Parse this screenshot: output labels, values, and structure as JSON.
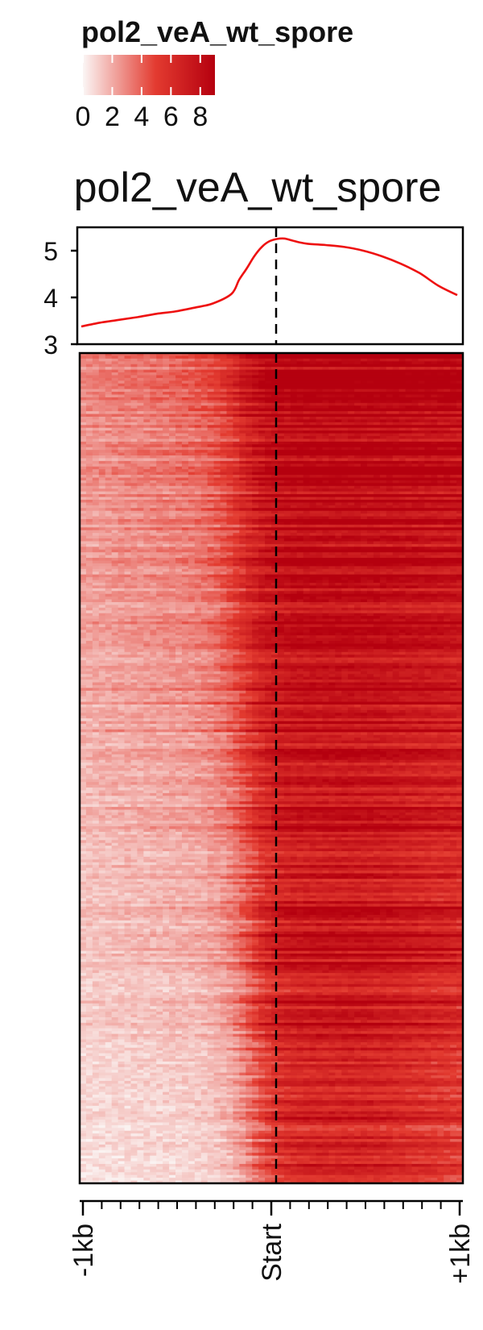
{
  "legend": {
    "title": "pol2_veA_wt_spore",
    "ticks": [
      "0",
      "2",
      "4",
      "6",
      "8"
    ],
    "min": 0,
    "max": 9,
    "color_low": "#fbf6f5",
    "color_mid": "#e33b30",
    "color_high": "#b5000f"
  },
  "chart_data": {
    "type": "heatmap",
    "title": "pol2_veA_wt_spore",
    "profile": {
      "type": "line",
      "series_color": "#ee1010",
      "ylim": [
        3,
        5.5
      ],
      "yticks": [
        "3",
        "4",
        "5"
      ],
      "x": [
        0,
        0.05,
        0.1,
        0.15,
        0.2,
        0.25,
        0.3,
        0.35,
        0.4,
        0.42,
        0.44,
        0.46,
        0.48,
        0.5,
        0.52,
        0.54,
        0.56,
        0.58,
        0.6,
        0.65,
        0.7,
        0.75,
        0.8,
        0.85,
        0.9,
        0.95,
        1.0
      ],
      "values": [
        3.38,
        3.46,
        3.52,
        3.58,
        3.65,
        3.7,
        3.78,
        3.87,
        4.08,
        4.38,
        4.62,
        4.88,
        5.08,
        5.2,
        5.25,
        5.26,
        5.22,
        5.18,
        5.15,
        5.12,
        5.08,
        5.0,
        4.88,
        4.72,
        4.52,
        4.25,
        4.05
      ]
    },
    "x_axis": {
      "tick_labels": [
        "-1kb",
        "Start",
        "+1kb"
      ],
      "tick_positions": [
        0,
        0.5,
        1
      ]
    },
    "heatmap": {
      "rows": 300,
      "columns": 60,
      "value_range": [
        0,
        9
      ],
      "pattern": "rows sorted by signal; high signal downstream of Start, lower signal upstream"
    }
  }
}
